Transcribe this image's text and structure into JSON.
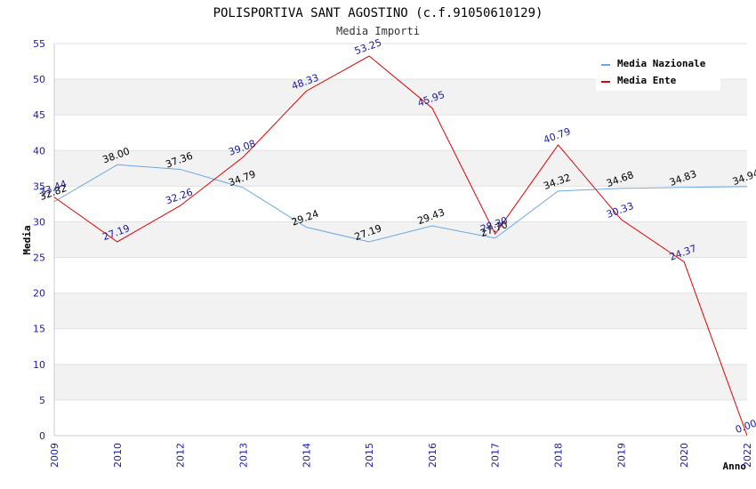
{
  "chart_data": {
    "type": "line",
    "title": "POLISPORTIVA SANT AGOSTINO (c.f.91050610129)",
    "subtitle": "Media Importi",
    "xlabel": "Anno",
    "ylabel": "Media",
    "ylim": [
      0,
      55
    ],
    "yticks": [
      "0",
      "5",
      "10",
      "15",
      "20",
      "25",
      "30",
      "35",
      "40",
      "45",
      "50",
      "55"
    ],
    "categories": [
      "2009",
      "2010",
      "2012",
      "2013",
      "2014",
      "2015",
      "2016",
      "2017",
      "2018",
      "2019",
      "2020",
      "2022"
    ],
    "series": [
      {
        "name": "Media Nazionale",
        "color": "#6aa8e0",
        "label_color": "#000000",
        "values": [
          32.82,
          38.0,
          37.36,
          34.79,
          29.24,
          27.19,
          29.43,
          27.7,
          34.32,
          34.68,
          34.83,
          34.94
        ],
        "labels": [
          "32.82",
          "38.00",
          "37.36",
          "34.79",
          "29.24",
          "27.19",
          "29.43",
          "27.70",
          "34.32",
          "34.68",
          "34.83",
          "34.94"
        ]
      },
      {
        "name": "Media Ente",
        "color": "#e00000",
        "label_color": "#1a1aa6",
        "values": [
          33.44,
          27.19,
          32.26,
          39.08,
          48.33,
          53.25,
          45.95,
          28.3,
          40.79,
          30.33,
          24.37,
          0.0
        ],
        "labels": [
          "33.44",
          "27.19",
          "32.26",
          "39.08",
          "48.33",
          "53.25",
          "45.95",
          "28.30",
          "40.79",
          "30.33",
          "24.37",
          "0.00"
        ]
      }
    ],
    "legend_position": "top-right",
    "grid": true
  }
}
